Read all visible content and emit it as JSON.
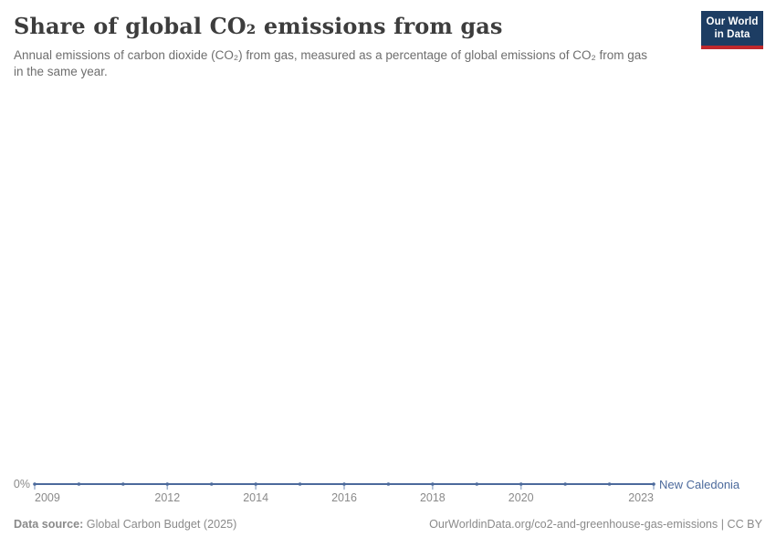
{
  "header": {
    "title": "Share of global CO₂ emissions from gas",
    "subtitle": "Annual emissions of carbon dioxide (CO₂) from gas, measured as a percentage of global emissions of CO₂ from gas in the same year."
  },
  "logo": {
    "line1": "Our World",
    "line2": "in Data",
    "bg_color": "#1d3d63",
    "accent_color": "#c0282d"
  },
  "chart_data": {
    "type": "line",
    "title": "Share of global CO₂ emissions from gas",
    "x": [
      2009,
      2010,
      2011,
      2012,
      2013,
      2014,
      2015,
      2016,
      2017,
      2018,
      2019,
      2020,
      2021,
      2022,
      2023
    ],
    "series": [
      {
        "name": "New Caledonia",
        "color": "#4c6a9c",
        "values": [
          0,
          0,
          0,
          0,
          0,
          0,
          0,
          0,
          0,
          0,
          0,
          0,
          0,
          0,
          0
        ]
      }
    ],
    "x_ticks": [
      2009,
      2012,
      2014,
      2016,
      2018,
      2020,
      2023
    ],
    "x_tick_labels": [
      "2009",
      "2012",
      "2014",
      "2016",
      "2018",
      "2020",
      "2023"
    ],
    "y_tick_labels": [
      "0%"
    ],
    "xlabel": "",
    "ylabel": "",
    "unit": "%",
    "ylim": [
      0,
      null
    ],
    "grid": false,
    "legend_position": "end-of-line"
  },
  "footer": {
    "source_label": "Data source:",
    "source_value": " Global Carbon Budget (2025)",
    "attribution": "OurWorldinData.org/co2-and-greenhouse-gas-emissions | CC BY"
  }
}
